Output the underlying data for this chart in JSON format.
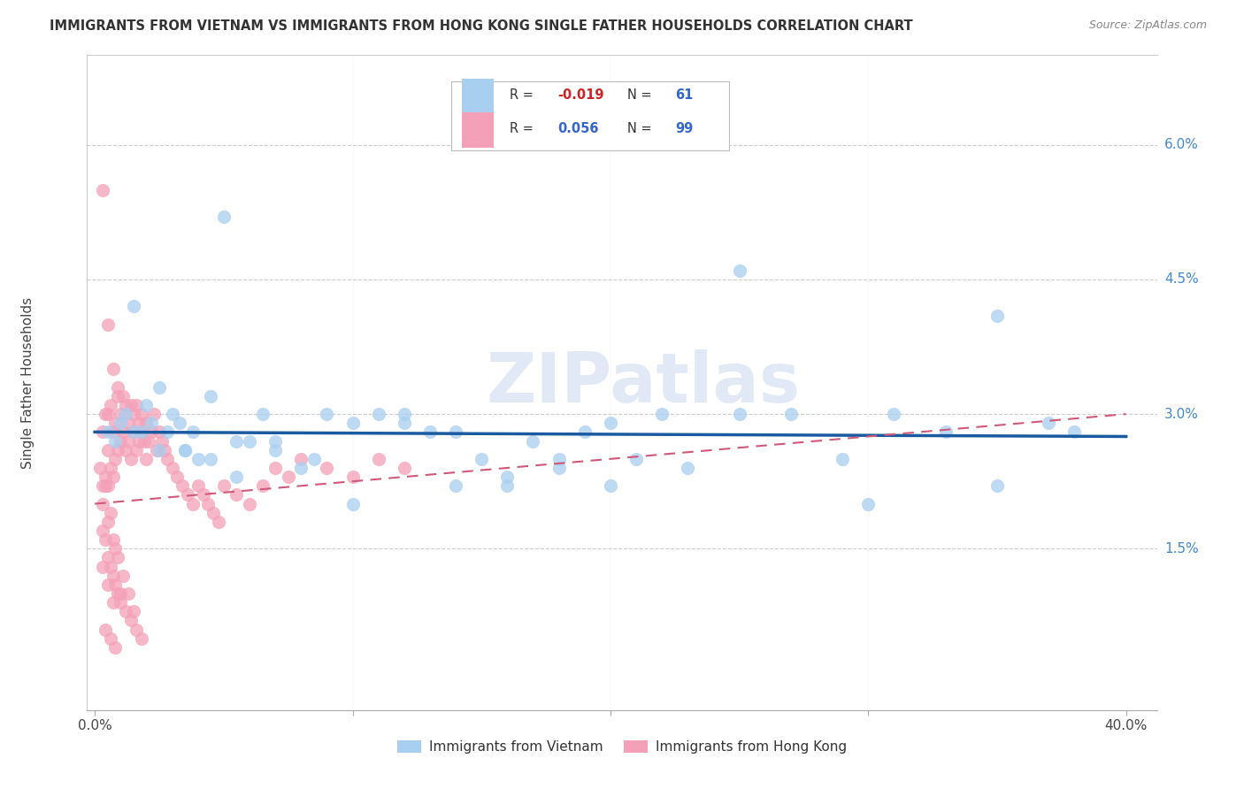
{
  "title": "IMMIGRANTS FROM VIETNAM VS IMMIGRANTS FROM HONG KONG SINGLE FATHER HOUSEHOLDS CORRELATION CHART",
  "source": "Source: ZipAtlas.com",
  "ylabel": "Single Father Households",
  "xlim": [
    0.0,
    0.4
  ],
  "ylim": [
    0.0,
    0.068
  ],
  "ytick_vals": [
    0.015,
    0.03,
    0.045,
    0.06
  ],
  "ytick_labels": [
    "1.5%",
    "3.0%",
    "4.5%",
    "6.0%"
  ],
  "xtick_vals": [
    0.0,
    0.4
  ],
  "xtick_labels": [
    "0.0%",
    "40.0%"
  ],
  "legend_R_vietnam": "-0.019",
  "legend_N_vietnam": "61",
  "legend_R_hongkong": "0.056",
  "legend_N_hongkong": "99",
  "color_vietnam": "#a8cef0",
  "color_hongkong": "#f4a0b8",
  "trendline_vietnam_color": "#1a5aa0",
  "trendline_hongkong_color": "#d05878",
  "watermark": "ZIPatlas",
  "vietnam_x": [
    0.005,
    0.008,
    0.01,
    0.012,
    0.015,
    0.018,
    0.02,
    0.022,
    0.025,
    0.028,
    0.03,
    0.033,
    0.035,
    0.038,
    0.04,
    0.045,
    0.05,
    0.055,
    0.06,
    0.065,
    0.07,
    0.08,
    0.09,
    0.1,
    0.11,
    0.12,
    0.13,
    0.14,
    0.15,
    0.16,
    0.17,
    0.18,
    0.19,
    0.2,
    0.21,
    0.22,
    0.23,
    0.25,
    0.27,
    0.29,
    0.31,
    0.33,
    0.35,
    0.37,
    0.015,
    0.025,
    0.035,
    0.045,
    0.055,
    0.07,
    0.085,
    0.1,
    0.12,
    0.14,
    0.16,
    0.18,
    0.2,
    0.25,
    0.3,
    0.35,
    0.38
  ],
  "vietnam_y": [
    0.028,
    0.027,
    0.029,
    0.03,
    0.042,
    0.028,
    0.031,
    0.029,
    0.033,
    0.028,
    0.03,
    0.029,
    0.026,
    0.028,
    0.025,
    0.032,
    0.052,
    0.027,
    0.027,
    0.03,
    0.026,
    0.024,
    0.03,
    0.029,
    0.03,
    0.029,
    0.028,
    0.022,
    0.025,
    0.023,
    0.027,
    0.025,
    0.028,
    0.022,
    0.025,
    0.03,
    0.024,
    0.03,
    0.03,
    0.025,
    0.03,
    0.028,
    0.041,
    0.029,
    0.028,
    0.026,
    0.026,
    0.025,
    0.023,
    0.027,
    0.025,
    0.02,
    0.03,
    0.028,
    0.022,
    0.024,
    0.029,
    0.046,
    0.02,
    0.022,
    0.028
  ],
  "hongkong_x": [
    0.002,
    0.003,
    0.003,
    0.004,
    0.004,
    0.005,
    0.005,
    0.005,
    0.006,
    0.006,
    0.007,
    0.007,
    0.008,
    0.008,
    0.009,
    0.009,
    0.01,
    0.01,
    0.011,
    0.011,
    0.012,
    0.012,
    0.013,
    0.013,
    0.014,
    0.014,
    0.015,
    0.015,
    0.016,
    0.016,
    0.017,
    0.017,
    0.018,
    0.018,
    0.019,
    0.02,
    0.02,
    0.021,
    0.022,
    0.023,
    0.024,
    0.025,
    0.026,
    0.027,
    0.028,
    0.03,
    0.032,
    0.034,
    0.036,
    0.038,
    0.04,
    0.042,
    0.044,
    0.046,
    0.048,
    0.05,
    0.055,
    0.06,
    0.065,
    0.07,
    0.075,
    0.08,
    0.09,
    0.1,
    0.11,
    0.12,
    0.003,
    0.005,
    0.007,
    0.009,
    0.011,
    0.013,
    0.015,
    0.003,
    0.005,
    0.007,
    0.009,
    0.004,
    0.006,
    0.008,
    0.004,
    0.006,
    0.008,
    0.01,
    0.003,
    0.005,
    0.007,
    0.003,
    0.004,
    0.005,
    0.006,
    0.007,
    0.008,
    0.009,
    0.01,
    0.012,
    0.014,
    0.016,
    0.018
  ],
  "hongkong_y": [
    0.024,
    0.022,
    0.028,
    0.023,
    0.03,
    0.022,
    0.026,
    0.03,
    0.024,
    0.031,
    0.023,
    0.028,
    0.025,
    0.029,
    0.026,
    0.032,
    0.027,
    0.03,
    0.028,
    0.032,
    0.026,
    0.031,
    0.027,
    0.029,
    0.025,
    0.031,
    0.028,
    0.03,
    0.026,
    0.031,
    0.027,
    0.029,
    0.028,
    0.03,
    0.027,
    0.025,
    0.029,
    0.027,
    0.028,
    0.03,
    0.026,
    0.028,
    0.027,
    0.026,
    0.025,
    0.024,
    0.023,
    0.022,
    0.021,
    0.02,
    0.022,
    0.021,
    0.02,
    0.019,
    0.018,
    0.022,
    0.021,
    0.02,
    0.022,
    0.024,
    0.023,
    0.025,
    0.024,
    0.023,
    0.025,
    0.024,
    0.02,
    0.018,
    0.016,
    0.014,
    0.012,
    0.01,
    0.008,
    0.055,
    0.04,
    0.035,
    0.033,
    0.006,
    0.005,
    0.004,
    0.022,
    0.019,
    0.015,
    0.01,
    0.013,
    0.011,
    0.009,
    0.017,
    0.016,
    0.014,
    0.013,
    0.012,
    0.011,
    0.01,
    0.009,
    0.008,
    0.007,
    0.006,
    0.005
  ]
}
